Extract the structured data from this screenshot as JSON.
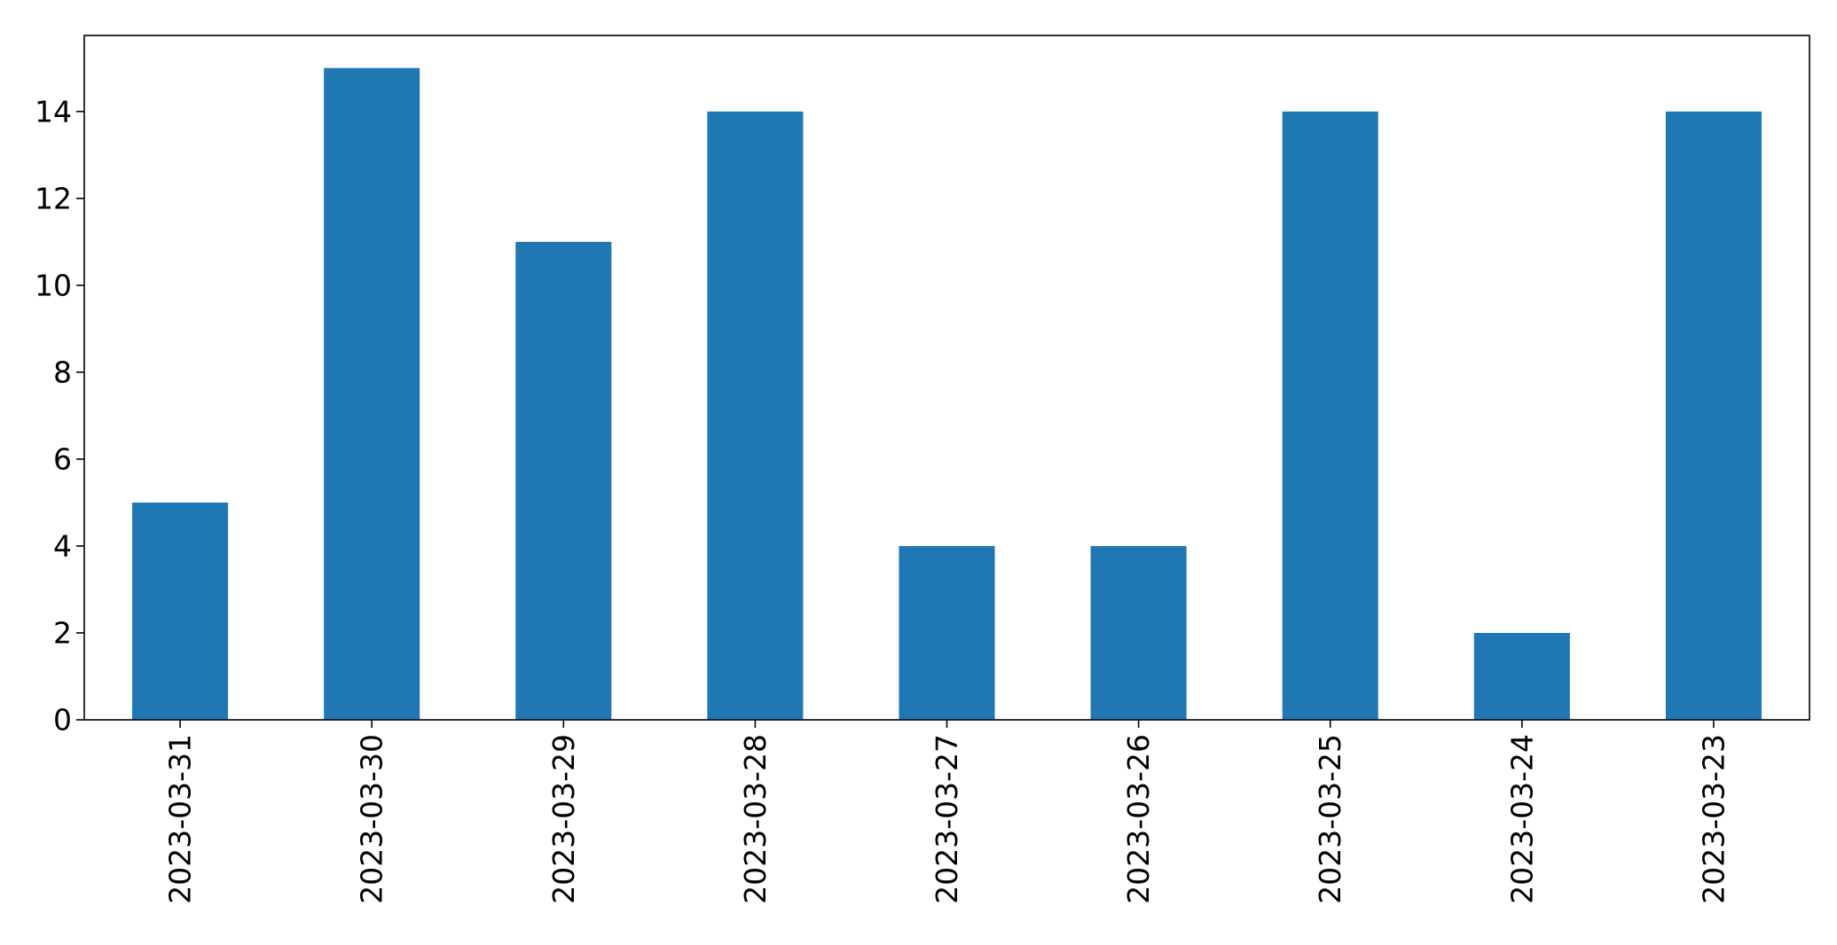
{
  "chart_data": {
    "type": "bar",
    "title": "",
    "xlabel": "",
    "ylabel": "",
    "categories": [
      "2023-03-31",
      "2023-03-30",
      "2023-03-29",
      "2023-03-28",
      "2023-03-27",
      "2023-03-26",
      "2023-03-25",
      "2023-03-24",
      "2023-03-23"
    ],
    "values": [
      5,
      15,
      11,
      14,
      4,
      4,
      14,
      2,
      14
    ],
    "ylim": [
      0,
      15.75
    ],
    "yticks": [
      0,
      2,
      4,
      6,
      8,
      10,
      12,
      14
    ],
    "bar_color": "#1f77b4",
    "grid": false,
    "legend": "none"
  }
}
